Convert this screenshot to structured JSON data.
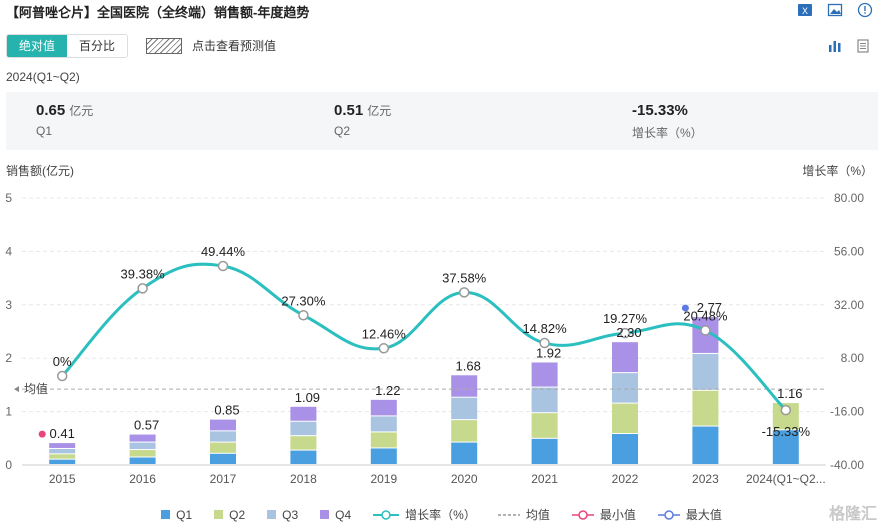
{
  "header": {
    "title": "【阿普唑仑片】全国医院（全终端）销售额-年度趋势",
    "icons": [
      "excel-icon",
      "image-icon",
      "warning-icon"
    ]
  },
  "toolbar": {
    "toggle_absolute": "绝对值",
    "toggle_percent": "百分比",
    "forecast_label": "点击查看预测值",
    "view_icons": [
      "bar-chart-icon",
      "table-icon"
    ]
  },
  "summary": {
    "period": "2024(Q1~Q2)",
    "q1_value": "0.65",
    "q1_unit": "亿元",
    "q1_label": "Q1",
    "q2_value": "0.51",
    "q2_unit": "亿元",
    "q2_label": "Q2",
    "growth_value": "-15.33%",
    "growth_label": "增长率（%）"
  },
  "chart_data": {
    "type": "bar",
    "stacked": true,
    "categories": [
      "2015",
      "2016",
      "2017",
      "2018",
      "2019",
      "2020",
      "2021",
      "2022",
      "2023",
      "2024(Q1~Q2..."
    ],
    "series": [
      {
        "name": "Q1",
        "color": "#4a9fe0",
        "values": [
          0.1,
          0.14,
          0.21,
          0.27,
          0.31,
          0.42,
          0.49,
          0.58,
          0.72,
          0.65
        ]
      },
      {
        "name": "Q2",
        "color": "#c7d98c",
        "values": [
          0.1,
          0.14,
          0.21,
          0.27,
          0.3,
          0.42,
          0.48,
          0.57,
          0.67,
          0.51
        ]
      },
      {
        "name": "Q3",
        "color": "#a9c4e0",
        "values": [
          0.1,
          0.14,
          0.21,
          0.27,
          0.3,
          0.42,
          0.48,
          0.57,
          0.69,
          0
        ]
      },
      {
        "name": "Q4",
        "color": "#a891e6",
        "values": [
          0.11,
          0.15,
          0.22,
          0.28,
          0.31,
          0.42,
          0.47,
          0.58,
          0.69,
          0
        ]
      }
    ],
    "totals": [
      0.41,
      0.57,
      0.85,
      1.09,
      1.22,
      1.68,
      1.92,
      2.3,
      2.77,
      1.16
    ],
    "total_labels": [
      "0.41",
      "0.57",
      "0.85",
      "1.09",
      "1.22",
      "1.68",
      "1.92",
      "2.30",
      "2.77",
      "1.16"
    ],
    "growth": {
      "name": "增长率（%）",
      "color": "#2bbfbf",
      "values": [
        0,
        39.38,
        49.44,
        27.3,
        12.46,
        37.58,
        14.82,
        19.27,
        20.48,
        -15.33
      ],
      "labels": [
        "0%",
        "39.38%",
        "49.44%",
        "27.30%",
        "12.46%",
        "37.58%",
        "14.82%",
        "19.27%",
        "20.48%",
        "-15.33%"
      ]
    },
    "mean": {
      "name": "均值",
      "label": "均值",
      "value": 1.42
    },
    "min_marker": {
      "name": "最小值",
      "color": "#e8457a",
      "index": 0
    },
    "max_marker": {
      "name": "最大值",
      "color": "#5b7be0",
      "index": 8
    },
    "ylabel_left": "销售额(亿元)",
    "ylabel_right": "增长率（%）",
    "ylim_left": [
      0,
      5
    ],
    "ylim_right": [
      -40,
      80
    ],
    "yticks_left": [
      "0",
      "1",
      "2",
      "3",
      "4",
      "5"
    ],
    "yticks_right": [
      "-40.00",
      "-16.00",
      "8.00",
      "32.00",
      "56.00",
      "80.00"
    ],
    "grid": true,
    "legend_position": "bottom"
  },
  "legend": {
    "q1": "Q1",
    "q2": "Q2",
    "q3": "Q3",
    "q4": "Q4",
    "growth": "增长率（%）",
    "mean": "均值",
    "min": "最小值",
    "max": "最大值"
  },
  "watermark": "格隆汇"
}
